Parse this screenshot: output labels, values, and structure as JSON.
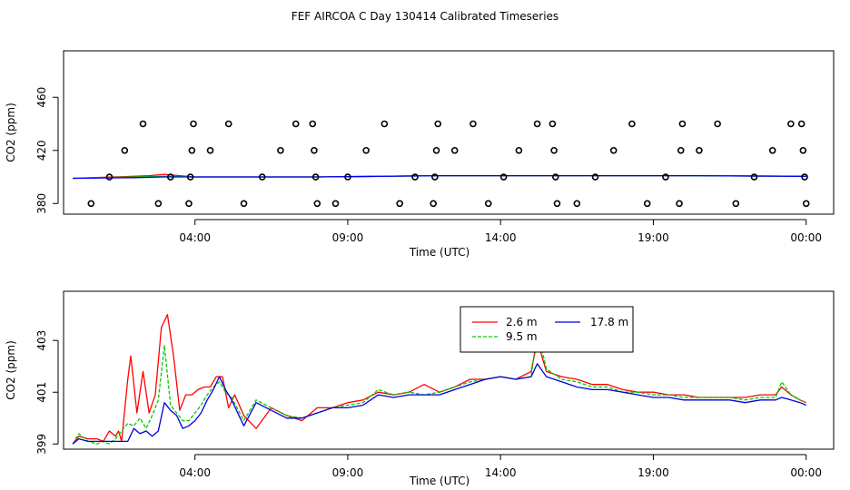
{
  "title": "FEF AIRCOA C  Day 130414  Calibrated Timeseries",
  "chart_data": [
    {
      "type": "scatter+line",
      "xlabel": "Time (UTC)",
      "ylabel": "CO2 (ppm)",
      "x_unit": "hours since 00:00 UTC",
      "xlim": [
        -0.3,
        24.9
      ],
      "ylim": [
        372,
        495
      ],
      "xticks": [
        {
          "value": 4,
          "label": "04:00"
        },
        {
          "value": 9,
          "label": "09:00"
        },
        {
          "value": 14,
          "label": "14:00"
        },
        {
          "value": 19,
          "label": "19:00"
        },
        {
          "value": 24,
          "label": "00:00"
        }
      ],
      "yticks": [
        {
          "value": 380,
          "label": "380"
        },
        {
          "value": 420,
          "label": "420"
        },
        {
          "value": 460,
          "label": "460"
        }
      ],
      "calibration_points": [
        [
          0.6,
          380
        ],
        [
          1.2,
          400
        ],
        [
          1.7,
          420
        ],
        [
          2.3,
          440
        ],
        [
          2.8,
          380
        ],
        [
          3.2,
          400
        ],
        [
          3.8,
          380
        ],
        [
          3.85,
          400
        ],
        [
          3.9,
          420
        ],
        [
          3.95,
          440
        ],
        [
          4.5,
          420
        ],
        [
          5.1,
          440
        ],
        [
          5.6,
          380
        ],
        [
          6.2,
          400
        ],
        [
          6.8,
          420
        ],
        [
          7.3,
          440
        ],
        [
          7.85,
          440
        ],
        [
          7.9,
          420
        ],
        [
          7.95,
          400
        ],
        [
          8.0,
          380
        ],
        [
          8.6,
          380
        ],
        [
          9.0,
          400
        ],
        [
          9.6,
          420
        ],
        [
          10.2,
          440
        ],
        [
          10.7,
          380
        ],
        [
          11.2,
          400
        ],
        [
          11.8,
          380
        ],
        [
          11.85,
          400
        ],
        [
          11.9,
          420
        ],
        [
          11.95,
          440
        ],
        [
          12.5,
          420
        ],
        [
          13.1,
          440
        ],
        [
          13.6,
          380
        ],
        [
          14.1,
          400
        ],
        [
          14.6,
          420
        ],
        [
          15.2,
          440
        ],
        [
          15.7,
          440
        ],
        [
          15.75,
          420
        ],
        [
          15.8,
          400
        ],
        [
          15.85,
          380
        ],
        [
          16.5,
          380
        ],
        [
          17.1,
          400
        ],
        [
          17.7,
          420
        ],
        [
          18.3,
          440
        ],
        [
          18.8,
          380
        ],
        [
          19.4,
          400
        ],
        [
          19.85,
          380
        ],
        [
          19.9,
          420
        ],
        [
          19.95,
          440
        ],
        [
          20.5,
          420
        ],
        [
          21.1,
          440
        ],
        [
          21.7,
          380
        ],
        [
          22.3,
          400
        ],
        [
          22.9,
          420
        ],
        [
          23.5,
          440
        ],
        [
          23.85,
          440
        ],
        [
          23.9,
          420
        ],
        [
          23.95,
          400
        ],
        [
          24.0,
          380
        ]
      ],
      "series": [
        {
          "name": "2.6 m",
          "color": "#ff0000",
          "x": [
            0,
            2,
            2.5,
            3,
            3.5,
            4,
            8,
            12,
            16,
            20,
            24
          ],
          "y": [
            399,
            400.5,
            401,
            402,
            401,
            400,
            400,
            401,
            401,
            401,
            400.5
          ]
        },
        {
          "name": "9.5 m",
          "color": "#00c000",
          "x": [
            0,
            2,
            3,
            4,
            8,
            12,
            16,
            20,
            24
          ],
          "y": [
            399,
            400,
            400.5,
            400,
            400,
            401,
            401,
            401,
            400.5
          ]
        },
        {
          "name": "17.8 m",
          "color": "#0000ff",
          "x": [
            0,
            2,
            3,
            4,
            8,
            12,
            16,
            20,
            24
          ],
          "y": [
            399,
            399.5,
            400,
            400,
            400,
            401,
            401,
            401,
            400.5
          ]
        }
      ]
    },
    {
      "type": "line",
      "xlabel": "Time (UTC)",
      "ylabel": "CO2 (ppm)",
      "x_unit": "hours since 00:00 UTC",
      "xlim": [
        -0.3,
        24.9
      ],
      "ylim": [
        398.8,
        404.9
      ],
      "xticks": [
        {
          "value": 4,
          "label": "04:00"
        },
        {
          "value": 9,
          "label": "09:00"
        },
        {
          "value": 14,
          "label": "14:00"
        },
        {
          "value": 19,
          "label": "19:00"
        },
        {
          "value": 24,
          "label": "00:00"
        }
      ],
      "yticks": [
        {
          "value": 399,
          "label": "399"
        },
        {
          "value": 401,
          "label": "401"
        },
        {
          "value": 403,
          "label": "403"
        }
      ],
      "legend": {
        "position": "top-center",
        "entries": [
          "2.6 m",
          "9.5 m",
          "17.8 m"
        ]
      },
      "series": [
        {
          "name": "2.6 m",
          "color": "#ff0000",
          "dash": "solid",
          "x": [
            0,
            0.2,
            0.5,
            0.8,
            1,
            1.2,
            1.4,
            1.5,
            1.6,
            1.8,
            1.9,
            2.1,
            2.3,
            2.5,
            2.7,
            2.9,
            3.1,
            3.3,
            3.5,
            3.7,
            3.9,
            4.1,
            4.3,
            4.5,
            4.7,
            4.9,
            5.1,
            5.3,
            5.6,
            6,
            6.5,
            7,
            7.5,
            8,
            8.5,
            9,
            9.5,
            10,
            10.5,
            11,
            11.5,
            12,
            12.5,
            13,
            13.5,
            14,
            14.5,
            15,
            15.2,
            15.5,
            16,
            16.5,
            17,
            17.5,
            18,
            18.5,
            19,
            19.5,
            20,
            20.5,
            21,
            21.5,
            22,
            22.5,
            23,
            23.2,
            23.5,
            23.8,
            24
          ],
          "y": [
            399.0,
            399.3,
            399.2,
            399.2,
            399.1,
            399.5,
            399.3,
            399.5,
            399.1,
            401.5,
            402.4,
            400.2,
            401.8,
            400.2,
            400.9,
            403.5,
            404.0,
            402.4,
            400.3,
            400.9,
            400.9,
            401.1,
            401.2,
            401.2,
            401.6,
            401.6,
            400.4,
            400.9,
            400.1,
            399.6,
            400.4,
            400.1,
            399.9,
            400.4,
            400.4,
            400.6,
            400.7,
            401.0,
            400.9,
            401.0,
            401.3,
            401.0,
            401.2,
            401.5,
            401.5,
            401.6,
            401.5,
            401.8,
            403.0,
            401.8,
            401.6,
            401.5,
            401.3,
            401.3,
            401.1,
            401.0,
            401.0,
            400.9,
            400.9,
            400.8,
            400.8,
            400.8,
            400.8,
            400.9,
            400.9,
            401.2,
            400.9,
            400.7,
            400.6
          ]
        },
        {
          "name": "9.5 m",
          "color": "#00cc00",
          "dash": "4,2",
          "x": [
            0,
            0.2,
            0.5,
            0.8,
            1,
            1.2,
            1.4,
            1.6,
            1.8,
            2,
            2.2,
            2.4,
            2.6,
            2.8,
            3,
            3.2,
            3.4,
            3.6,
            3.8,
            4,
            4.2,
            4.4,
            4.6,
            4.8,
            5,
            5.2,
            5.6,
            6,
            6.5,
            7,
            7.5,
            8,
            8.5,
            9,
            9.5,
            10,
            10.5,
            11,
            11.5,
            12,
            12.5,
            13,
            13.5,
            14,
            14.5,
            15,
            15.2,
            15.5,
            16,
            16.5,
            17,
            17.5,
            18,
            18.5,
            19,
            19.5,
            20,
            20.5,
            21,
            21.5,
            22,
            22.5,
            23,
            23.2,
            23.5,
            23.8,
            24
          ],
          "y": [
            399.0,
            399.4,
            399.1,
            399.0,
            399.1,
            399.0,
            399.2,
            399.5,
            399.8,
            399.7,
            400.0,
            399.6,
            400.1,
            400.7,
            402.8,
            400.5,
            400.2,
            399.9,
            399.9,
            400.2,
            400.5,
            400.9,
            401.2,
            401.4,
            401.0,
            400.8,
            399.9,
            400.7,
            400.4,
            400.1,
            400.0,
            400.2,
            400.4,
            400.5,
            400.6,
            401.1,
            400.9,
            401.0,
            400.9,
            401.0,
            401.2,
            401.4,
            401.5,
            401.6,
            401.5,
            401.6,
            403.4,
            401.9,
            401.5,
            401.4,
            401.2,
            401.2,
            401.0,
            401.0,
            400.9,
            400.9,
            400.8,
            400.8,
            400.8,
            400.8,
            400.7,
            400.8,
            400.8,
            401.4,
            400.9,
            400.7,
            400.6
          ]
        },
        {
          "name": "17.8 m",
          "color": "#0000dd",
          "dash": "solid",
          "x": [
            0,
            0.2,
            0.5,
            0.8,
            1,
            1.2,
            1.4,
            1.6,
            1.8,
            2,
            2.2,
            2.4,
            2.6,
            2.8,
            3,
            3.2,
            3.4,
            3.6,
            3.8,
            4,
            4.2,
            4.4,
            4.6,
            4.8,
            5,
            5.2,
            5.6,
            6,
            6.5,
            7,
            7.5,
            8,
            8.5,
            9,
            9.5,
            10,
            10.5,
            11,
            11.5,
            12,
            12.5,
            13,
            13.5,
            14,
            14.5,
            15,
            15.2,
            15.5,
            16,
            16.5,
            17,
            17.5,
            18,
            18.5,
            19,
            19.5,
            20,
            20.5,
            21,
            21.5,
            22,
            22.5,
            23,
            23.2,
            23.5,
            23.8,
            24
          ],
          "y": [
            399.0,
            399.2,
            399.1,
            399.1,
            399.1,
            399.1,
            399.1,
            399.1,
            399.1,
            399.6,
            399.4,
            399.5,
            399.3,
            399.5,
            400.6,
            400.3,
            400.1,
            399.6,
            399.7,
            399.9,
            400.2,
            400.7,
            401.1,
            401.6,
            401.1,
            400.7,
            399.7,
            400.6,
            400.3,
            400.0,
            400.0,
            400.2,
            400.4,
            400.4,
            400.5,
            400.9,
            400.8,
            400.9,
            400.9,
            400.9,
            401.1,
            401.3,
            401.5,
            401.6,
            401.5,
            401.6,
            402.1,
            401.6,
            401.4,
            401.2,
            401.1,
            401.1,
            401.0,
            400.9,
            400.8,
            400.8,
            400.7,
            400.7,
            400.7,
            400.7,
            400.6,
            400.7,
            400.7,
            400.8,
            400.7,
            400.6,
            400.5
          ]
        }
      ]
    }
  ]
}
